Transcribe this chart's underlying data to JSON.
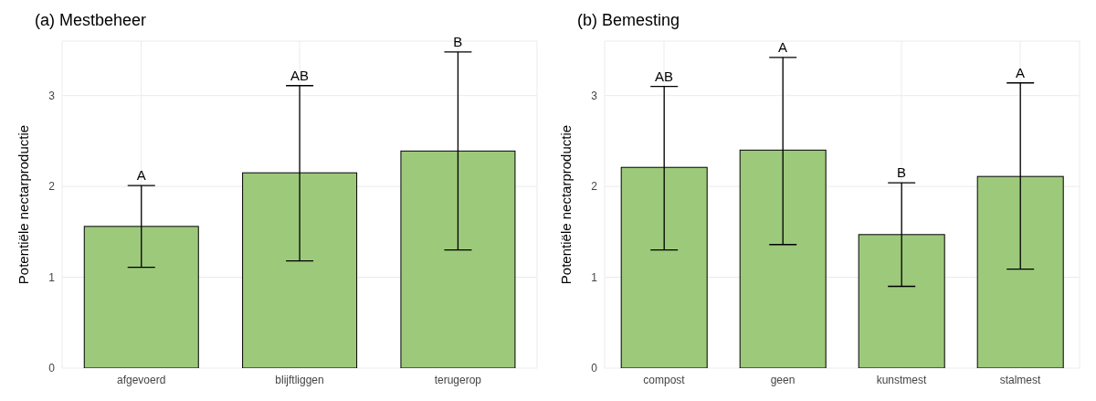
{
  "chart_data": [
    {
      "type": "bar",
      "title": "(a) Mestbeheer",
      "ylabel": "Potentiële nectarproductie",
      "categories": [
        "afgevoerd",
        "blijftliggen",
        "terugerop"
      ],
      "values": [
        1.56,
        2.15,
        2.39
      ],
      "color": "#9dc97b",
      "errors": [
        [
          1.11,
          2.01
        ],
        [
          1.18,
          3.11
        ],
        [
          1.3,
          3.48
        ]
      ],
      "ylim": [
        0,
        3.6
      ],
      "yticks": [
        0,
        1,
        2,
        3
      ],
      "grid": true,
      "annotations": [
        {
          "text": "A",
          "x": "afgevoerd",
          "y": 2.01
        },
        {
          "text": "AB",
          "x": "blijftliggen",
          "y": 3.11
        },
        {
          "text": "B",
          "x": "terugerop",
          "y": 3.48
        }
      ]
    },
    {
      "type": "bar",
      "title": "(b) Bemesting",
      "ylabel": "Potentiële nectarproductie",
      "categories": [
        "compost",
        "geen",
        "kunstmest",
        "stalmest"
      ],
      "values": [
        2.21,
        2.4,
        1.47,
        2.11
      ],
      "color": "#9dc97b",
      "errors": [
        [
          1.3,
          3.1
        ],
        [
          1.36,
          3.42
        ],
        [
          0.9,
          2.04
        ],
        [
          1.09,
          3.14
        ]
      ],
      "ylim": [
        0,
        3.6
      ],
      "yticks": [
        0,
        1,
        2,
        3
      ],
      "grid": true,
      "annotations": [
        {
          "text": "AB",
          "x": "compost",
          "y": 3.1
        },
        {
          "text": "A",
          "x": "geen",
          "y": 3.42
        },
        {
          "text": "B",
          "x": "kunstmest",
          "y": 2.04
        },
        {
          "text": "A",
          "x": "stalmest",
          "y": 3.14
        }
      ]
    }
  ]
}
